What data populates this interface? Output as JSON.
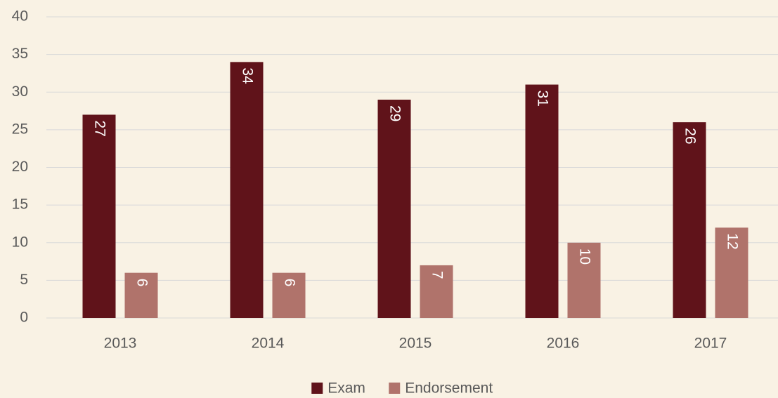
{
  "chart_data": {
    "type": "bar",
    "categories": [
      "2013",
      "2014",
      "2015",
      "2016",
      "2017"
    ],
    "series": [
      {
        "name": "Exam",
        "color": "#60131a",
        "values": [
          27,
          34,
          29,
          31,
          26
        ]
      },
      {
        "name": "Endorsement",
        "color": "#b0736b",
        "values": [
          6,
          6,
          7,
          10,
          12
        ]
      }
    ],
    "ylim": [
      0,
      40
    ],
    "yticks": [
      0,
      5,
      10,
      15,
      20,
      25,
      30,
      35,
      40
    ],
    "grid": true,
    "legend": "bottom"
  }
}
